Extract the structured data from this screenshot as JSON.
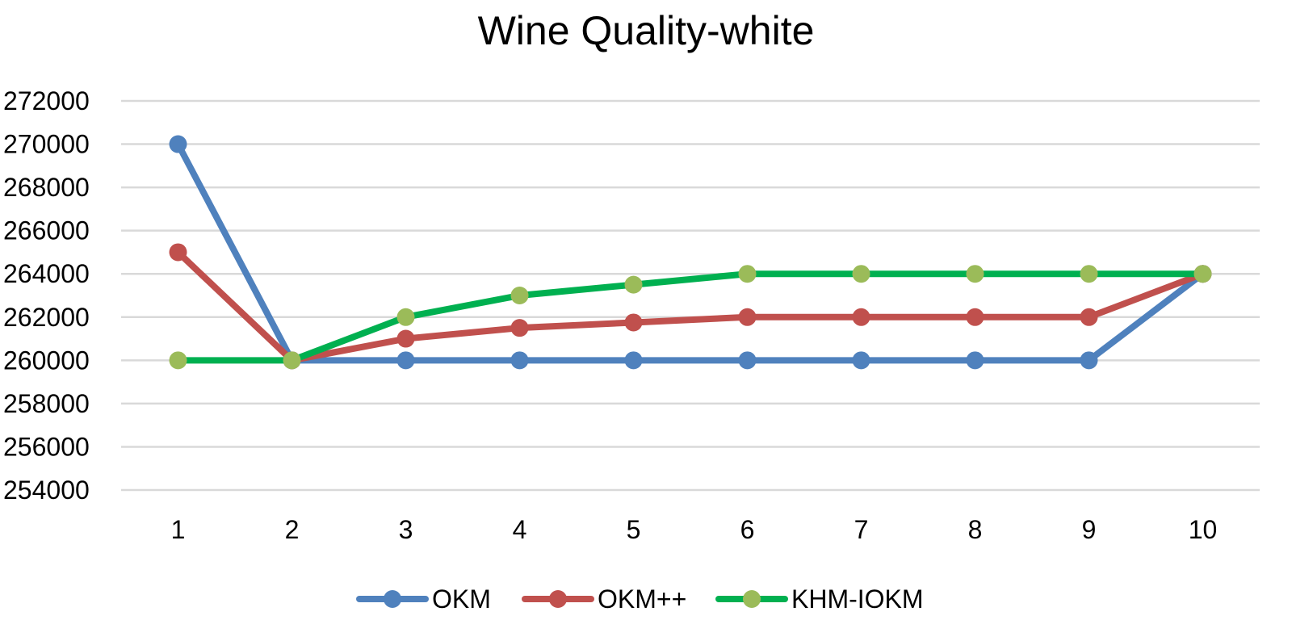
{
  "chart_data": {
    "type": "line",
    "title": "Wine Quality-white",
    "xlabel": "",
    "ylabel": "",
    "categories": [
      "1",
      "2",
      "3",
      "4",
      "5",
      "6",
      "7",
      "8",
      "9",
      "10"
    ],
    "ylim": [
      254000,
      272000
    ],
    "yticks": [
      "272000",
      "270000",
      "268000",
      "266000",
      "264000",
      "262000",
      "260000",
      "258000",
      "256000",
      "254000"
    ],
    "grid": true,
    "legend_position": "bottom",
    "series": [
      {
        "name": "OKM",
        "color": "#4f81bd",
        "marker_color": "#4f81bd",
        "values": [
          270000,
          260000,
          260000,
          260000,
          260000,
          260000,
          260000,
          260000,
          260000,
          264000
        ]
      },
      {
        "name": "OKM++",
        "color": "#c0504d",
        "marker_color": "#c0504d",
        "values": [
          265000,
          260000,
          261000,
          261500,
          261750,
          262000,
          262000,
          262000,
          262000,
          264000
        ]
      },
      {
        "name": "KHM-IOKM",
        "color": "#00b050",
        "marker_color": "#9bbb59",
        "values": [
          260000,
          260000,
          262000,
          263000,
          263500,
          264000,
          264000,
          264000,
          264000,
          264000
        ]
      }
    ]
  }
}
